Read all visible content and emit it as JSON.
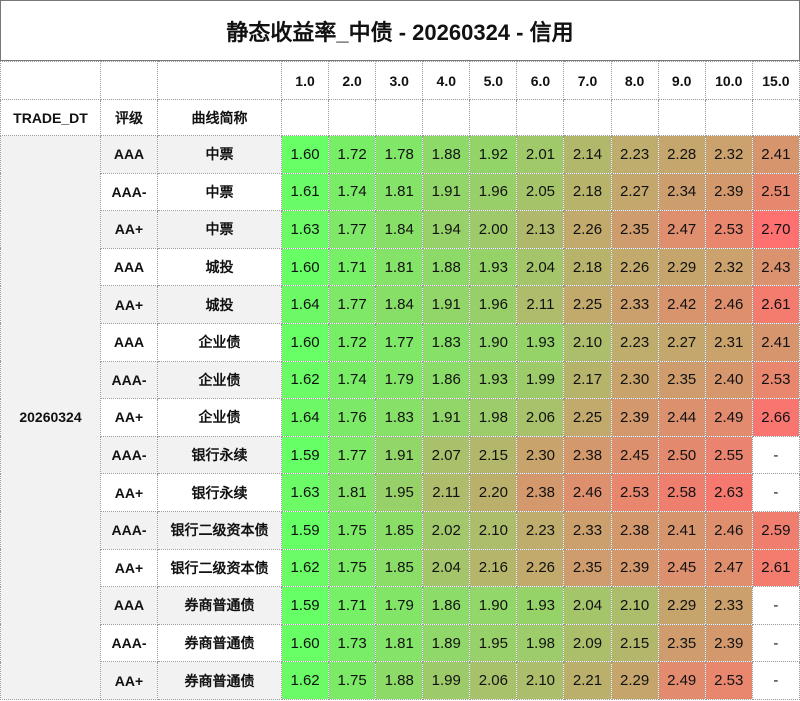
{
  "title": "静态收益率_中债 - 20260324 - 信用",
  "chart_data": {
    "type": "heatmap",
    "title": "静态收益率_中债 - 20260324 - 信用",
    "columns": [
      "1.0",
      "2.0",
      "3.0",
      "4.0",
      "5.0",
      "6.0",
      "7.0",
      "8.0",
      "9.0",
      "10.0",
      "15.0"
    ],
    "index_headers": [
      "TRADE_DT",
      "评级",
      "曲线简称"
    ],
    "trade_dt": "20260324",
    "colors": {
      "low": "#66ff66",
      "high": "#ff7070",
      "missing": "#ffffff"
    },
    "missing_label": "-",
    "rows": [
      {
        "rating": "AAA",
        "name": "中票",
        "values": [
          1.6,
          1.72,
          1.78,
          1.88,
          1.92,
          2.01,
          2.14,
          2.23,
          2.28,
          2.32,
          2.41
        ]
      },
      {
        "rating": "AAA-",
        "name": "中票",
        "values": [
          1.61,
          1.74,
          1.81,
          1.91,
          1.96,
          2.05,
          2.18,
          2.27,
          2.34,
          2.39,
          2.51
        ]
      },
      {
        "rating": "AA+",
        "name": "中票",
        "values": [
          1.63,
          1.77,
          1.84,
          1.94,
          2.0,
          2.13,
          2.26,
          2.35,
          2.47,
          2.53,
          2.7
        ]
      },
      {
        "rating": "AAA",
        "name": "城投",
        "values": [
          1.6,
          1.71,
          1.81,
          1.88,
          1.93,
          2.04,
          2.18,
          2.26,
          2.29,
          2.32,
          2.43
        ]
      },
      {
        "rating": "AA+",
        "name": "城投",
        "values": [
          1.64,
          1.77,
          1.84,
          1.91,
          1.96,
          2.11,
          2.25,
          2.33,
          2.42,
          2.46,
          2.61
        ]
      },
      {
        "rating": "AAA",
        "name": "企业债",
        "values": [
          1.6,
          1.72,
          1.77,
          1.83,
          1.9,
          1.93,
          2.1,
          2.23,
          2.27,
          2.31,
          2.41
        ]
      },
      {
        "rating": "AAA-",
        "name": "企业债",
        "values": [
          1.62,
          1.74,
          1.79,
          1.86,
          1.93,
          1.99,
          2.17,
          2.3,
          2.35,
          2.4,
          2.53
        ]
      },
      {
        "rating": "AA+",
        "name": "企业债",
        "values": [
          1.64,
          1.76,
          1.83,
          1.91,
          1.98,
          2.06,
          2.25,
          2.39,
          2.44,
          2.49,
          2.66
        ]
      },
      {
        "rating": "AAA-",
        "name": "银行永续",
        "values": [
          1.59,
          1.77,
          1.91,
          2.07,
          2.15,
          2.3,
          2.38,
          2.45,
          2.5,
          2.55,
          null
        ]
      },
      {
        "rating": "AA+",
        "name": "银行永续",
        "values": [
          1.63,
          1.81,
          1.95,
          2.11,
          2.2,
          2.38,
          2.46,
          2.53,
          2.58,
          2.63,
          null
        ]
      },
      {
        "rating": "AAA-",
        "name": "银行二级资本债",
        "values": [
          1.59,
          1.75,
          1.85,
          2.02,
          2.1,
          2.23,
          2.33,
          2.38,
          2.41,
          2.46,
          2.59
        ]
      },
      {
        "rating": "AA+",
        "name": "银行二级资本债",
        "values": [
          1.62,
          1.75,
          1.85,
          2.04,
          2.16,
          2.26,
          2.35,
          2.39,
          2.45,
          2.47,
          2.61
        ]
      },
      {
        "rating": "AAA",
        "name": "券商普通债",
        "values": [
          1.59,
          1.71,
          1.79,
          1.86,
          1.9,
          1.93,
          2.04,
          2.1,
          2.29,
          2.33,
          null
        ]
      },
      {
        "rating": "AAA-",
        "name": "券商普通债",
        "values": [
          1.6,
          1.73,
          1.81,
          1.89,
          1.95,
          1.98,
          2.09,
          2.15,
          2.35,
          2.39,
          null
        ]
      },
      {
        "rating": "AA+",
        "name": "券商普通债",
        "values": [
          1.62,
          1.75,
          1.88,
          1.99,
          2.06,
          2.1,
          2.21,
          2.29,
          2.49,
          2.53,
          null
        ]
      }
    ]
  }
}
